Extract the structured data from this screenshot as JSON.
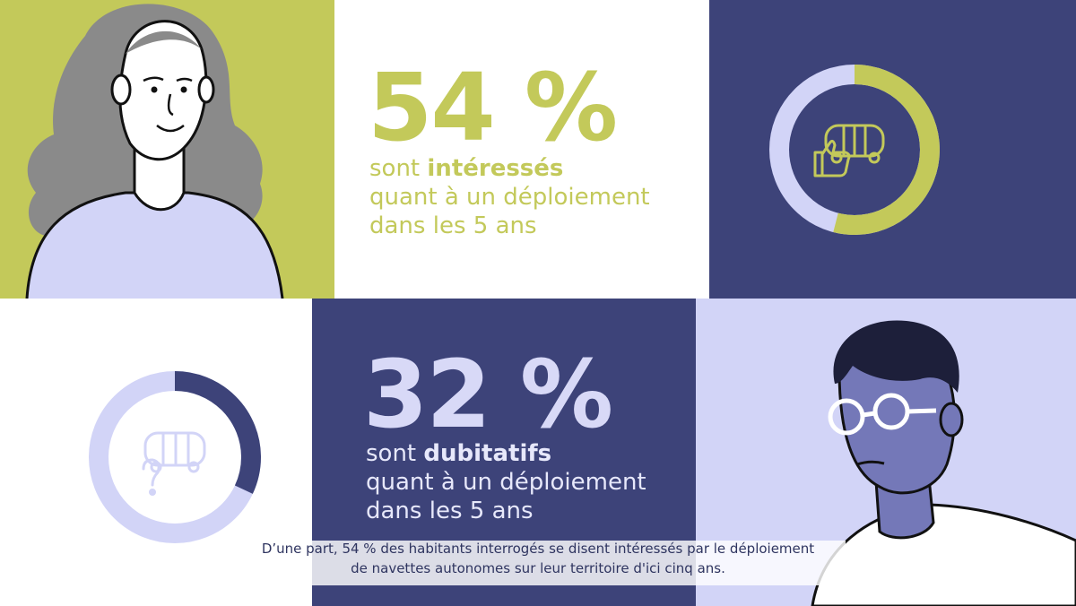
{
  "stats": [
    {
      "percent": "54 %",
      "prefix": "sont ",
      "emphasis": "intéressés",
      "line2": "quant à un déploiement",
      "line3": "dans les 5 ans",
      "donut_fraction": 0.54,
      "color": "#c3c95a",
      "icon": "bus-thumbs-up-icon"
    },
    {
      "percent": "32 %",
      "prefix": "sont ",
      "emphasis": "dubitatifs",
      "line2": "quant à un déploiement",
      "line3": "dans les 5 ans",
      "donut_fraction": 0.32,
      "color": "#d8d9f7",
      "icon": "bus-question-icon"
    }
  ],
  "subtitle": {
    "line1": "D’une part, 54 % des habitants interrogés se disent intéressés par le déploiement",
    "line2": "de navettes autonomes sur leur territoire d'ici cinq ans."
  },
  "colors": {
    "lime": "#c3c95a",
    "navy": "#3d4379",
    "lavender": "#d2d4f7",
    "white": "#ffffff"
  }
}
